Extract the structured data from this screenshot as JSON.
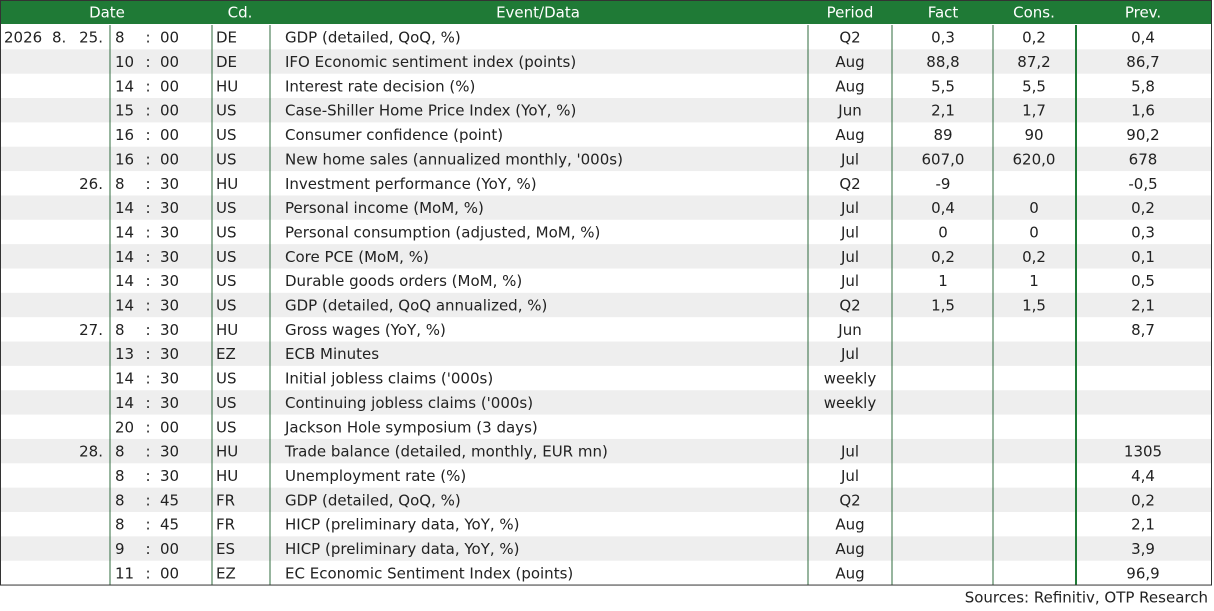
{
  "table": {
    "columns": [
      "Date",
      "Cd.",
      "Event/Data",
      "Period",
      "Fact",
      "Cons.",
      "Prev."
    ],
    "time_separator": ":",
    "rows": [
      {
        "year": "2026",
        "month": "8.",
        "day": "25.",
        "hour": "8",
        "minute": "00",
        "code": "DE",
        "event": "GDP (detailed, QoQ, %)",
        "period": "Q2",
        "fact": "0,3",
        "cons": "0,2",
        "prev": "0,4"
      },
      {
        "hour": "10",
        "minute": "00",
        "code": "DE",
        "event": "IFO Economic sentiment index (points)",
        "period": "Aug",
        "fact": "88,8",
        "cons": "87,2",
        "prev": "86,7"
      },
      {
        "hour": "14",
        "minute": "00",
        "code": "HU",
        "event": "Interest rate decision (%)",
        "period": "Aug",
        "fact": "5,5",
        "cons": "5,5",
        "prev": "5,8"
      },
      {
        "hour": "15",
        "minute": "00",
        "code": "US",
        "event": "Case-Shiller Home Price Index (YoY, %)",
        "period": "Jun",
        "fact": "2,1",
        "cons": "1,7",
        "prev": "1,6"
      },
      {
        "hour": "16",
        "minute": "00",
        "code": "US",
        "event": "Consumer confidence (point)",
        "period": "Aug",
        "fact": "89",
        "cons": "90",
        "prev": "90,2"
      },
      {
        "hour": "16",
        "minute": "00",
        "code": "US",
        "event": "New home sales (annualized monthly, '000s)",
        "period": "Jul",
        "fact": "607,0",
        "cons": "620,0",
        "prev": "678"
      },
      {
        "day": "26.",
        "hour": "8",
        "minute": "30",
        "code": "HU",
        "event": "Investment performance (YoY, %)",
        "period": "Q2",
        "fact": "-9",
        "prev": "-0,5"
      },
      {
        "hour": "14",
        "minute": "30",
        "code": "US",
        "event": "Personal income (MoM, %)",
        "period": "Jul",
        "fact": "0,4",
        "cons": "0",
        "prev": "0,2"
      },
      {
        "hour": "14",
        "minute": "30",
        "code": "US",
        "event": "Personal consumption (adjusted, MoM, %)",
        "period": "Jul",
        "fact": "0",
        "cons": "0",
        "prev": "0,3"
      },
      {
        "hour": "14",
        "minute": "30",
        "code": "US",
        "event": "Core PCE (MoM, %)",
        "period": "Jul",
        "fact": "0,2",
        "cons": "0,2",
        "prev": "0,1"
      },
      {
        "hour": "14",
        "minute": "30",
        "code": "US",
        "event": "Durable goods orders (MoM, %)",
        "period": "Jul",
        "fact": "1",
        "cons": "1",
        "prev": "0,5"
      },
      {
        "hour": "14",
        "minute": "30",
        "code": "US",
        "event": "GDP (detailed, QoQ annualized, %)",
        "period": "Q2",
        "fact": "1,5",
        "cons": "1,5",
        "prev": "2,1"
      },
      {
        "day": "27.",
        "hour": "8",
        "minute": "30",
        "code": "HU",
        "event": "Gross wages (YoY, %)",
        "period": "Jun",
        "prev": "8,7"
      },
      {
        "hour": "13",
        "minute": "30",
        "code": "EZ",
        "event": "ECB Minutes",
        "period": "Jul"
      },
      {
        "hour": "14",
        "minute": "30",
        "code": "US",
        "event": "Initial jobless claims ('000s)",
        "period": "weekly"
      },
      {
        "hour": "14",
        "minute": "30",
        "code": "US",
        "event": "Continuing jobless claims ('000s)",
        "period": "weekly"
      },
      {
        "hour": "20",
        "minute": "00",
        "code": "US",
        "event": "Jackson Hole symposium (3 days)"
      },
      {
        "day": "28.",
        "hour": "8",
        "minute": "30",
        "code": "HU",
        "event": "Trade balance (detailed, monthly, EUR mn)",
        "period": "Jul",
        "prev": "1305"
      },
      {
        "hour": "8",
        "minute": "30",
        "code": "HU",
        "event": "Unemployment rate (%)",
        "period": "Jul",
        "prev": "4,4"
      },
      {
        "hour": "8",
        "minute": "45",
        "code": "FR",
        "event": "GDP (detailed, QoQ, %)",
        "period": "Q2",
        "prev": "0,2"
      },
      {
        "hour": "8",
        "minute": "45",
        "code": "FR",
        "event": "HICP (preliminary data, YoY, %)",
        "period": "Aug",
        "prev": "2,1"
      },
      {
        "hour": "9",
        "minute": "00",
        "code": "ES",
        "event": "HICP (preliminary data, YoY, %)",
        "period": "Aug",
        "prev": "3,9"
      },
      {
        "hour": "11",
        "minute": "00",
        "code": "EZ",
        "event": "EC Economic Sentiment Index (points)",
        "period": "Aug",
        "prev": "96,9"
      }
    ]
  },
  "footer": {
    "source": "Sources: Refinitiv, OTP Research"
  }
}
